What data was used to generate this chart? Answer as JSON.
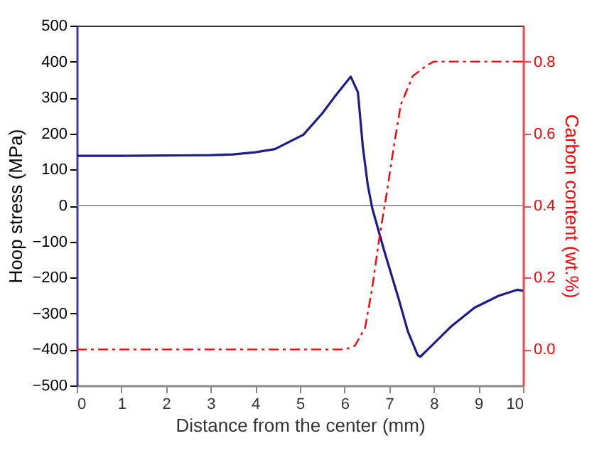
{
  "chart_data": {
    "type": "line",
    "xlabel": "Distance from the center (mm)",
    "ylabel": "Hoop stress (MPa)",
    "y2label": "Carbon content (wt.%)",
    "xlim": [
      0,
      10
    ],
    "xticks": [
      0,
      1,
      2,
      3,
      4,
      5,
      6,
      7,
      8,
      9,
      10
    ],
    "ylim": [
      -500,
      500
    ],
    "yticks": [
      -500,
      -400,
      -300,
      -200,
      -100,
      0,
      100,
      200,
      300,
      400,
      500
    ],
    "y2lim": [
      -0.1,
      0.9
    ],
    "y2ticks": [
      {
        "value": 0,
        "label": "0.0"
      },
      0.2,
      0.4,
      0.6,
      0.8
    ],
    "grid": false,
    "marker": "none",
    "ref_lines": [
      {
        "axis": "y",
        "value": 0,
        "color": "#999999"
      }
    ],
    "series": [
      {
        "color": "#1c1c8e",
        "line_style": "solid",
        "x": [
          0,
          1,
          2,
          3,
          3.5,
          4,
          4.44,
          5.08,
          5.5,
          5.82,
          6.14,
          6.3,
          6.41,
          6.52,
          6.62,
          6.89,
          7.21,
          7.42,
          7.64,
          7.7,
          7.85,
          8.38,
          8.91,
          9.45,
          9.87,
          10
        ],
        "values": [
          138,
          138,
          139,
          140,
          142,
          148,
          157,
          197,
          256,
          309,
          358,
          315,
          164,
          58,
          -7,
          -126,
          -258,
          -350,
          -416,
          -420,
          -402,
          -337,
          -284,
          -251,
          -234,
          -237
        ]
      },
      {
        "color": "#ff0000",
        "axis": "y2",
        "line_style": "dashed",
        "x": [
          0,
          2,
          4,
          6,
          6.23,
          6.46,
          6.62,
          6.78,
          6.94,
          7.1,
          7.26,
          7.53,
          7.85,
          8,
          9,
          10
        ],
        "values": [
          0,
          0,
          0,
          0,
          0.01,
          0.06,
          0.17,
          0.31,
          0.43,
          0.56,
          0.68,
          0.76,
          0.79,
          0.8,
          0.8,
          0.8
        ]
      }
    ]
  }
}
